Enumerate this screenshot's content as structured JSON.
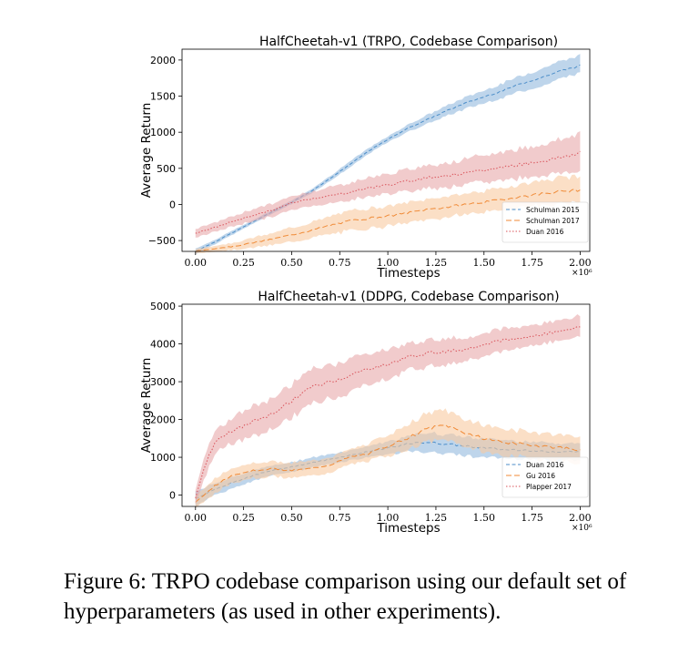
{
  "chart_data": [
    {
      "type": "line",
      "title": "HalfCheetah-v1 (TRPO, Codebase Comparison)",
      "xlabel": "Timesteps",
      "ylabel": "Average Return",
      "x_multiplier": "×10⁶",
      "xlim": [
        -0.07,
        2.05
      ],
      "ylim": [
        -650,
        2150
      ],
      "xticks": [
        0.0,
        0.25,
        0.5,
        0.75,
        1.0,
        1.25,
        1.5,
        1.75,
        2.0
      ],
      "xtick_labels": [
        "0.00",
        "0.25",
        "0.50",
        "0.75",
        "1.00",
        "1.25",
        "1.50",
        "1.75",
        "2.00"
      ],
      "yticks": [
        -500,
        0,
        500,
        1000,
        1500,
        2000
      ],
      "ytick_labels": [
        "−500",
        "0",
        "500",
        "1000",
        "1500",
        "2000"
      ],
      "legend_position": "lower-right",
      "series": [
        {
          "name": "Schulman 2015",
          "color": "#4c8ec9",
          "fill": "#93b9dd",
          "dash": "4,2.5",
          "x": [
            0.0,
            0.1,
            0.2,
            0.3,
            0.4,
            0.5,
            0.6,
            0.7,
            0.8,
            0.9,
            1.0,
            1.1,
            1.2,
            1.3,
            1.4,
            1.5,
            1.6,
            1.7,
            1.8,
            1.9,
            2.0
          ],
          "mean": [
            -650,
            -520,
            -380,
            -240,
            -100,
            30,
            180,
            360,
            550,
            740,
            900,
            1050,
            1170,
            1290,
            1400,
            1490,
            1580,
            1680,
            1760,
            1850,
            1920
          ],
          "lower": [
            -690,
            -550,
            -410,
            -265,
            -125,
            5,
            150,
            325,
            510,
            700,
            860,
            1000,
            1110,
            1220,
            1320,
            1400,
            1480,
            1570,
            1640,
            1740,
            1820
          ],
          "upper": [
            -610,
            -490,
            -350,
            -215,
            -75,
            55,
            210,
            395,
            590,
            780,
            940,
            1100,
            1230,
            1360,
            1480,
            1580,
            1680,
            1790,
            1880,
            1990,
            2060
          ]
        },
        {
          "name": "Schulman 2017",
          "color": "#f08a36",
          "fill": "#f8c9a0",
          "dash": "6,3",
          "x": [
            0.0,
            0.1,
            0.2,
            0.3,
            0.4,
            0.5,
            0.6,
            0.7,
            0.8,
            0.9,
            1.0,
            1.1,
            1.2,
            1.3,
            1.4,
            1.5,
            1.6,
            1.7,
            1.8,
            1.9,
            2.0
          ],
          "mean": [
            -650,
            -610,
            -580,
            -530,
            -480,
            -420,
            -360,
            -290,
            -230,
            -190,
            -160,
            -120,
            -70,
            -40,
            0,
            30,
            70,
            110,
            150,
            180,
            200
          ],
          "lower": [
            -680,
            -650,
            -630,
            -600,
            -560,
            -520,
            -470,
            -410,
            -370,
            -330,
            -300,
            -260,
            -210,
            -180,
            -140,
            -110,
            -80,
            -40,
            -10,
            10,
            30
          ],
          "upper": [
            -620,
            -570,
            -530,
            -460,
            -400,
            -320,
            -250,
            -170,
            -90,
            -50,
            -20,
            20,
            70,
            110,
            150,
            190,
            230,
            280,
            330,
            370,
            400
          ]
        },
        {
          "name": "Duan 2016",
          "color": "#d9535a",
          "fill": "#e8a8aa",
          "dash": "1.5,2",
          "x": [
            0.0,
            0.1,
            0.2,
            0.3,
            0.4,
            0.5,
            0.6,
            0.7,
            0.8,
            0.9,
            1.0,
            1.1,
            1.2,
            1.3,
            1.4,
            1.5,
            1.6,
            1.7,
            1.8,
            1.9,
            2.0
          ],
          "mean": [
            -400,
            -320,
            -230,
            -150,
            -80,
            20,
            80,
            120,
            170,
            230,
            270,
            320,
            370,
            400,
            430,
            470,
            520,
            560,
            600,
            650,
            720
          ],
          "lower": [
            -460,
            -380,
            -300,
            -230,
            -170,
            -80,
            -20,
            10,
            60,
            110,
            150,
            180,
            220,
            240,
            270,
            300,
            340,
            370,
            400,
            440,
            460
          ],
          "upper": [
            -340,
            -250,
            -160,
            -60,
            10,
            110,
            180,
            240,
            300,
            370,
            420,
            480,
            540,
            580,
            620,
            680,
            730,
            780,
            830,
            900,
            1000
          ]
        }
      ]
    },
    {
      "type": "line",
      "title": "HalfCheetah-v1 (DDPG, Codebase Comparison)",
      "xlabel": "Timesteps",
      "ylabel": "Average Return",
      "x_multiplier": "×10⁶",
      "xlim": [
        -0.07,
        2.05
      ],
      "ylim": [
        -300,
        5050
      ],
      "xticks": [
        0.0,
        0.25,
        0.5,
        0.75,
        1.0,
        1.25,
        1.5,
        1.75,
        2.0
      ],
      "xtick_labels": [
        "0.00",
        "0.25",
        "0.50",
        "0.75",
        "1.00",
        "1.25",
        "1.50",
        "1.75",
        "2.00"
      ],
      "yticks": [
        0,
        1000,
        2000,
        3000,
        4000,
        5000
      ],
      "ytick_labels": [
        "0",
        "1000",
        "2000",
        "3000",
        "4000",
        "5000"
      ],
      "legend_position": "lower-right",
      "series": [
        {
          "name": "Duan 2016",
          "color": "#4c8ec9",
          "fill": "#93b9dd",
          "dash": "4,2.5",
          "x": [
            0.0,
            0.1,
            0.2,
            0.3,
            0.4,
            0.5,
            0.6,
            0.7,
            0.8,
            0.9,
            1.0,
            1.1,
            1.2,
            1.3,
            1.4,
            1.5,
            1.6,
            1.7,
            1.8,
            1.9,
            2.0
          ],
          "mean": [
            -100,
            150,
            350,
            520,
            650,
            750,
            850,
            950,
            1050,
            1150,
            1250,
            1350,
            1400,
            1350,
            1300,
            1250,
            1200,
            1200,
            1150,
            1150,
            1150
          ],
          "lower": [
            -300,
            0,
            200,
            380,
            520,
            620,
            720,
            820,
            920,
            1000,
            1080,
            1150,
            1150,
            1100,
            1050,
            1000,
            980,
            970,
            940,
            930,
            920
          ],
          "upper": [
            100,
            300,
            500,
            660,
            780,
            880,
            980,
            1080,
            1180,
            1300,
            1420,
            1550,
            1650,
            1600,
            1550,
            1500,
            1450,
            1430,
            1400,
            1380,
            1380
          ]
        },
        {
          "name": "Gu 2016",
          "color": "#f08a36",
          "fill": "#f8c9a0",
          "dash": "6,3",
          "x": [
            0.0,
            0.1,
            0.2,
            0.3,
            0.4,
            0.5,
            0.6,
            0.7,
            0.8,
            0.9,
            1.0,
            1.1,
            1.2,
            1.3,
            1.4,
            1.5,
            1.6,
            1.7,
            1.8,
            1.9,
            2.0
          ],
          "mean": [
            -200,
            250,
            550,
            650,
            700,
            650,
            700,
            800,
            1000,
            1100,
            1300,
            1500,
            1750,
            1850,
            1650,
            1500,
            1400,
            1350,
            1300,
            1250,
            1200
          ],
          "lower": [
            -350,
            50,
            350,
            450,
            500,
            450,
            500,
            600,
            800,
            900,
            1050,
            1200,
            1400,
            1450,
            1300,
            1150,
            1050,
            1000,
            950,
            900,
            850
          ],
          "upper": [
            -50,
            450,
            750,
            850,
            900,
            850,
            900,
            1000,
            1200,
            1350,
            1600,
            1850,
            2150,
            2250,
            2000,
            1850,
            1750,
            1700,
            1650,
            1600,
            1550
          ]
        },
        {
          "name": "Plapper 2017",
          "color": "#d9535a",
          "fill": "#e8a8aa",
          "dash": "1.5,2",
          "x": [
            0.0,
            0.05,
            0.1,
            0.15,
            0.2,
            0.3,
            0.4,
            0.5,
            0.6,
            0.7,
            0.8,
            0.9,
            1.0,
            1.1,
            1.2,
            1.3,
            1.4,
            1.5,
            1.6,
            1.7,
            1.8,
            1.9,
            2.0
          ],
          "mean": [
            -100,
            800,
            1400,
            1600,
            1700,
            1950,
            2150,
            2500,
            2850,
            3000,
            3150,
            3350,
            3450,
            3650,
            3750,
            3800,
            3850,
            4000,
            4100,
            4150,
            4250,
            4350,
            4450
          ],
          "lower": [
            -300,
            500,
            1100,
            1300,
            1350,
            1550,
            1750,
            2050,
            2400,
            2550,
            2700,
            2950,
            3050,
            3300,
            3400,
            3450,
            3550,
            3700,
            3800,
            3900,
            4000,
            4100,
            4200
          ],
          "upper": [
            100,
            1100,
            1700,
            1900,
            2050,
            2350,
            2550,
            2950,
            3300,
            3450,
            3600,
            3750,
            3850,
            4000,
            4100,
            4150,
            4150,
            4300,
            4400,
            4450,
            4550,
            4650,
            4750
          ]
        }
      ]
    }
  ],
  "caption": "Figure 6: TRPO codebase comparison using our default set of hyperparameters (as used in other experiments)."
}
